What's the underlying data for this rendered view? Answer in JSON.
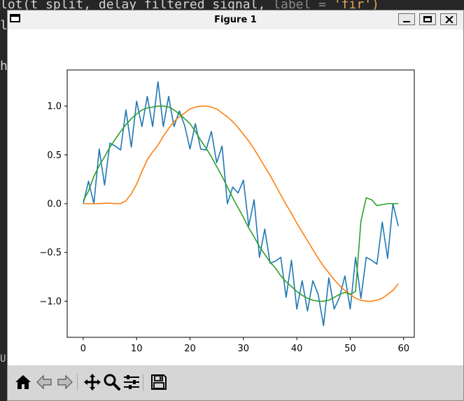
{
  "background_editor": {
    "line1_code": "lot(t_split, delay_filtered_signal, ",
    "line1_dim": "label = ",
    "line1_str": "'fir')",
    "line2": "l",
    "line3": "h",
    "line4": "U"
  },
  "window": {
    "title": "Figure 1",
    "icons": [
      "app-window-icon",
      "minimize-icon",
      "maximize-icon",
      "close-icon"
    ]
  },
  "toolbar": {
    "icons": [
      "home-icon",
      "back-arrow-icon",
      "forward-arrow-icon",
      "pan-move-icon",
      "zoom-magnifier-icon",
      "configure-subplots-icon",
      "save-floppy-icon"
    ]
  },
  "chart_data": {
    "type": "line",
    "title": "",
    "xlabel": "",
    "ylabel": "",
    "xlim": [
      -3,
      62
    ],
    "ylim": [
      -1.37,
      1.37
    ],
    "x_ticks": [
      0,
      10,
      20,
      30,
      40,
      50,
      60
    ],
    "x_tick_labels": [
      "0",
      "10",
      "20",
      "30",
      "40",
      "50",
      "60"
    ],
    "y_ticks": [
      1.0,
      0.5,
      0.0,
      -0.5,
      -1.0
    ],
    "y_tick_labels": [
      "1.0",
      "0.5",
      "0.0",
      "−0.5",
      "−1.0"
    ],
    "legend": "none",
    "grid": false,
    "colors": [
      "#1f77b4",
      "#ff7f0e",
      "#2ca02c"
    ],
    "series": [
      {
        "color": "#1f77b4",
        "x": [
          0,
          1,
          2,
          3,
          4,
          5,
          6,
          7,
          8,
          9,
          10,
          11,
          12,
          13,
          14,
          15,
          16,
          17,
          18,
          19,
          20,
          21,
          22,
          23,
          24,
          25,
          26,
          27,
          28,
          29,
          30,
          31,
          32,
          33,
          34,
          35,
          36,
          37,
          38,
          39,
          40,
          41,
          42,
          43,
          44,
          45,
          46,
          47,
          48,
          49,
          50,
          51,
          52,
          53,
          54,
          55,
          56,
          57,
          58,
          59
        ],
        "y": [
          0.0,
          0.23,
          0.0,
          0.56,
          0.19,
          0.62,
          0.59,
          0.55,
          0.96,
          0.58,
          1.05,
          0.79,
          1.1,
          0.79,
          1.25,
          0.79,
          1.1,
          0.79,
          0.95,
          0.8,
          0.56,
          0.82,
          0.56,
          0.55,
          0.74,
          0.42,
          0.59,
          0.0,
          0.17,
          0.11,
          0.24,
          -0.23,
          0.04,
          -0.55,
          -0.26,
          -0.61,
          -0.59,
          -0.55,
          -0.96,
          -0.58,
          -1.08,
          -0.79,
          -1.1,
          -0.79,
          -0.93,
          -1.25,
          -0.76,
          -1.08,
          -0.96,
          -0.74,
          -1.08,
          -0.55,
          -0.97,
          -0.55,
          -0.58,
          -0.62,
          -0.19,
          -0.56,
          0.0,
          -0.23
        ]
      },
      {
        "color": "#ff7f0e",
        "x": [
          0,
          1,
          2,
          3,
          4,
          5,
          6,
          7,
          8,
          9,
          10,
          11,
          12,
          13,
          14,
          15,
          16,
          17,
          18,
          19,
          20,
          21,
          22,
          23,
          24,
          25,
          26,
          27,
          28,
          29,
          30,
          31,
          32,
          33,
          34,
          35,
          36,
          37,
          38,
          39,
          40,
          41,
          42,
          43,
          44,
          45,
          46,
          47,
          48,
          49,
          50,
          51,
          52,
          53,
          54,
          55,
          56,
          57,
          58,
          59
        ],
        "y": [
          0.0,
          0.0,
          0.0,
          0.0,
          0.005,
          0.005,
          0.0,
          0.0,
          0.03,
          0.1,
          0.2,
          0.33,
          0.45,
          0.53,
          0.6,
          0.69,
          0.77,
          0.84,
          0.89,
          0.93,
          0.97,
          0.99,
          1.0,
          1.0,
          0.99,
          0.97,
          0.93,
          0.89,
          0.84,
          0.78,
          0.71,
          0.64,
          0.56,
          0.47,
          0.38,
          0.29,
          0.19,
          0.09,
          -0.01,
          -0.1,
          -0.2,
          -0.29,
          -0.38,
          -0.47,
          -0.56,
          -0.64,
          -0.71,
          -0.78,
          -0.84,
          -0.89,
          -0.93,
          -0.97,
          -0.99,
          -1.0,
          -1.0,
          -0.99,
          -0.97,
          -0.93,
          -0.89,
          -0.82
        ]
      },
      {
        "color": "#2ca02c",
        "x": [
          0,
          1,
          2,
          3,
          4,
          5,
          6,
          7,
          8,
          9,
          10,
          11,
          12,
          13,
          14,
          15,
          16,
          17,
          18,
          19,
          20,
          21,
          22,
          23,
          24,
          25,
          26,
          27,
          28,
          29,
          30,
          31,
          32,
          33,
          34,
          35,
          36,
          37,
          38,
          39,
          40,
          41,
          42,
          43,
          44,
          45,
          46,
          47,
          48,
          49,
          50,
          51,
          52,
          53,
          54,
          55,
          56,
          57,
          58,
          59
        ],
        "y": [
          0.03,
          0.13,
          0.28,
          0.39,
          0.48,
          0.58,
          0.66,
          0.74,
          0.81,
          0.87,
          0.92,
          0.96,
          0.98,
          0.99,
          1.0,
          1.0,
          0.99,
          0.96,
          0.92,
          0.87,
          0.82,
          0.74,
          0.65,
          0.57,
          0.48,
          0.38,
          0.28,
          0.17,
          0.06,
          -0.04,
          -0.14,
          -0.25,
          -0.34,
          -0.44,
          -0.52,
          -0.6,
          -0.66,
          -0.74,
          -0.8,
          -0.85,
          -0.9,
          -0.94,
          -0.97,
          -0.99,
          -1.0,
          -1.0,
          -0.99,
          -0.96,
          -0.93,
          -0.91,
          -0.93,
          -0.9,
          -0.18,
          0.06,
          0.04,
          -0.02,
          -0.01,
          0.0,
          0.0,
          0.0
        ]
      }
    ]
  }
}
